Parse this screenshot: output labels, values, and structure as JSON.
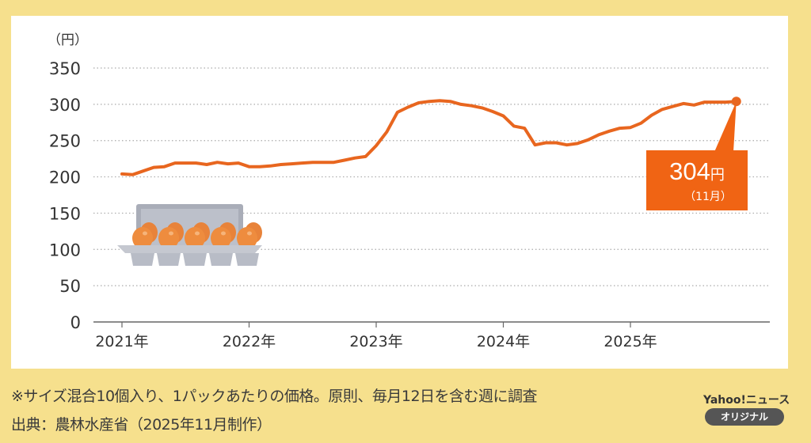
{
  "chart_data": {
    "type": "line",
    "unit_label": "（円）",
    "y_ticks": [
      "0",
      "50",
      "100",
      "150",
      "200",
      "250",
      "300",
      "350"
    ],
    "ylim": [
      0,
      350
    ],
    "x_tick_labels": [
      "2021年",
      "2022年",
      "2023年",
      "2024年",
      "2025年"
    ],
    "x_start": "2021-01",
    "x_end": "2025-11",
    "series": [
      {
        "name": "卵価格（10個入り1パック）",
        "color": "#e8661f",
        "values": [
          204,
          203,
          208,
          213,
          214,
          219,
          219,
          219,
          217,
          220,
          218,
          219,
          214,
          214,
          215,
          217,
          218,
          219,
          220,
          220,
          220,
          223,
          226,
          228,
          243,
          262,
          289,
          296,
          302,
          304,
          305,
          304,
          300,
          298,
          295,
          290,
          284,
          270,
          267,
          244,
          247,
          247,
          244,
          246,
          251,
          258,
          263,
          267,
          268,
          274,
          285,
          293,
          297,
          301,
          299,
          303,
          303,
          303,
          304
        ]
      }
    ],
    "annotation": {
      "value": "304",
      "unit": "円",
      "month": "（11月）",
      "color": "#f06414"
    },
    "grid": true
  },
  "footer": {
    "note": "※サイズ混合10個入り、1パックあたりの価格。原則、毎月12日を含む週に調査",
    "source": "出典：農林水産省（2025年11月制作）"
  },
  "brand": {
    "name": "Yahoo!ニュース",
    "badge": "オリジナル"
  }
}
